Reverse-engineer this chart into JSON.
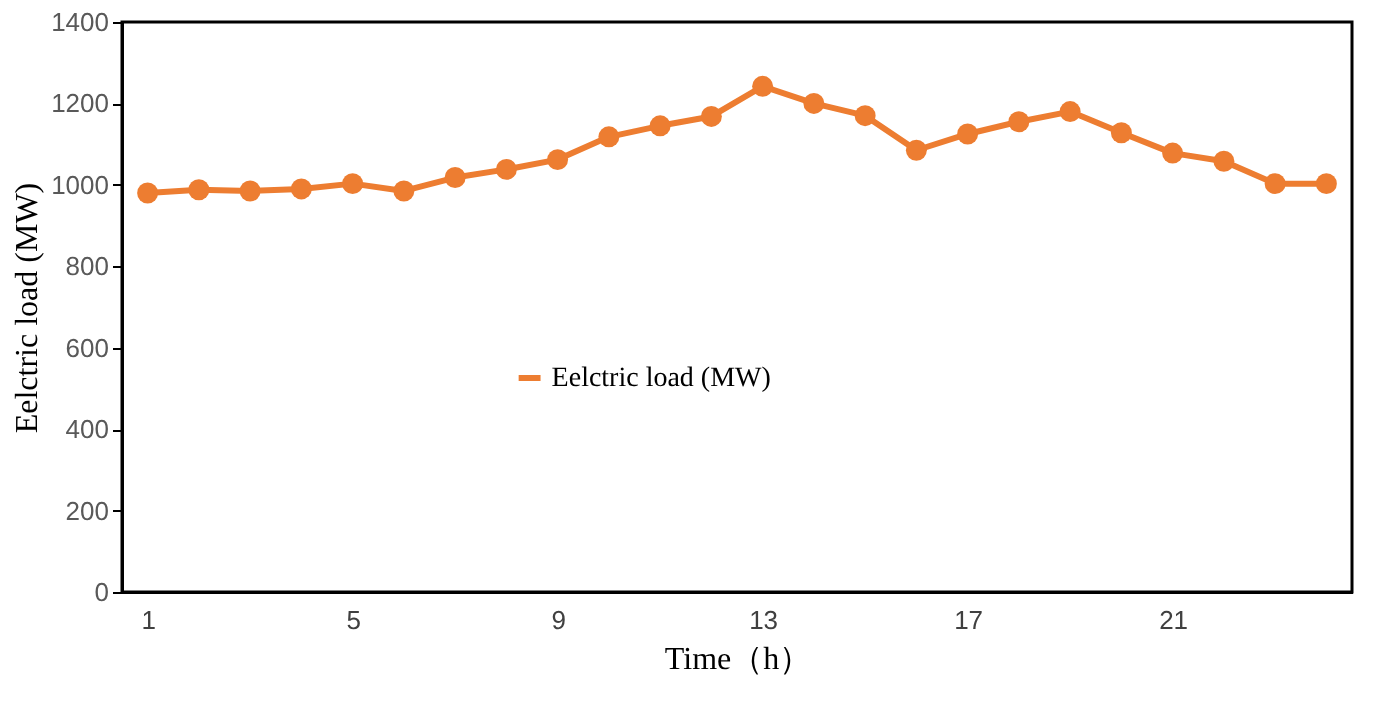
{
  "chart_data": {
    "type": "line",
    "xlabel": "Time（h）",
    "ylabel": "Eelctric load (MW)",
    "categories": [
      "1",
      null,
      null,
      null,
      "5",
      null,
      null,
      null,
      "9",
      null,
      null,
      null,
      "13",
      null,
      null,
      null,
      "17",
      null,
      null,
      null,
      "21",
      null,
      null,
      null
    ],
    "series": [
      {
        "name": "Eelctric load (MW)",
        "color": "#ed7d31",
        "values": [
          980,
          988,
          985,
          990,
          1003,
          985,
          1018,
          1038,
          1062,
          1118,
          1145,
          1168,
          1242,
          1200,
          1170,
          1085,
          1125,
          1155,
          1180,
          1128,
          1078,
          1058,
          1003,
          1003
        ]
      }
    ],
    "ylim": [
      0,
      1400
    ],
    "yticks": [
      0,
      200,
      400,
      600,
      800,
      1000,
      1200,
      1400
    ],
    "grid": false,
    "legend": "center",
    "marker": "circle",
    "line_style": "solid"
  }
}
